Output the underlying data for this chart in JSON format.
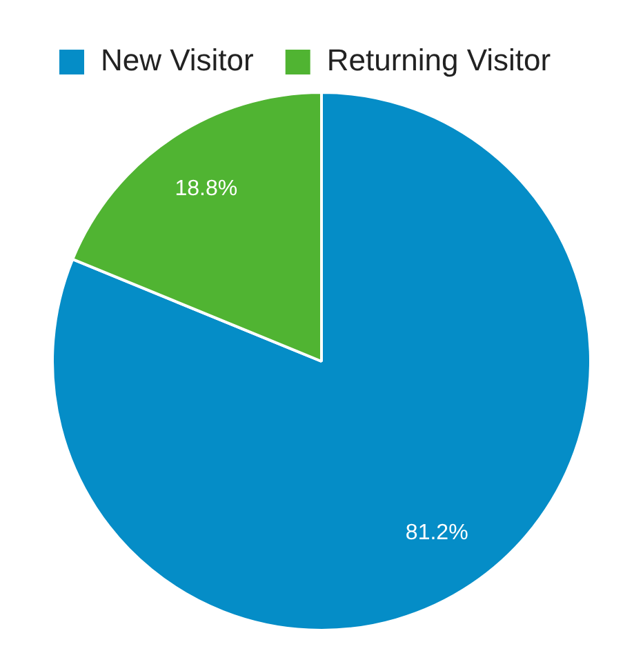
{
  "chart_data": {
    "type": "pie",
    "categories": [
      "New Visitor",
      "Returning Visitor"
    ],
    "values": [
      81.2,
      18.8
    ],
    "colors": [
      "#058dc7",
      "#50b432"
    ],
    "value_labels": [
      "81.2%",
      "18.8%"
    ],
    "legend": "top"
  }
}
